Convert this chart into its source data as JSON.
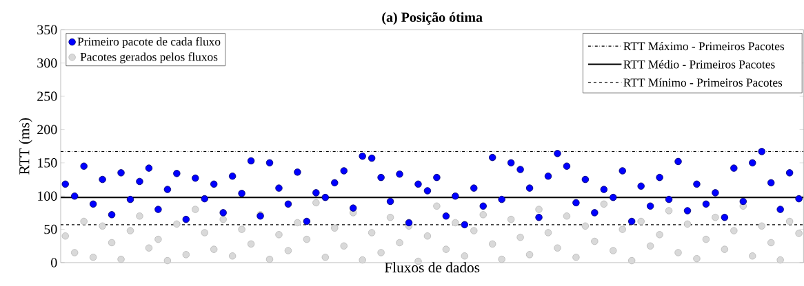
{
  "chart_data": {
    "type": "scatter",
    "title": "(a) Posição ótima",
    "xlabel": "Fluxos de dados",
    "ylabel": "RTT (ms)",
    "categories": [
      null,
      null,
      null,
      null,
      null,
      null,
      null,
      null,
      null,
      null,
      null,
      null,
      null,
      null,
      null,
      null,
      null,
      null,
      null,
      null,
      null,
      null,
      null,
      null,
      null,
      null,
      null,
      null,
      null,
      null,
      null,
      null,
      null,
      null,
      null,
      null,
      null,
      null,
      null,
      null,
      null,
      null,
      null,
      null,
      null,
      null,
      null,
      null,
      null,
      null,
      null,
      null,
      null,
      null,
      null,
      null,
      null,
      null,
      null,
      null,
      null,
      null,
      null,
      null,
      null,
      null,
      null,
      null,
      null,
      null,
      null,
      null,
      null,
      null,
      null,
      null,
      null,
      null,
      null,
      null
    ],
    "series": [
      {
        "name": "Primeiro pacote de cada fluxo",
        "color": "#0000ff",
        "values": [
          118,
          100,
          145,
          88,
          125,
          72,
          135,
          95,
          122,
          142,
          80,
          110,
          134,
          65,
          127,
          96,
          118,
          75,
          130,
          104,
          153,
          70,
          150,
          112,
          88,
          136,
          62,
          105,
          98,
          120,
          138,
          82,
          160,
          157,
          128,
          92,
          133,
          60,
          118,
          108,
          128,
          70,
          100,
          57,
          112,
          85,
          158,
          95,
          150,
          140,
          112,
          68,
          130,
          164,
          145,
          90,
          125,
          75,
          110,
          98,
          138,
          62,
          115,
          85,
          128,
          95,
          152,
          78,
          118,
          88,
          105,
          68,
          142,
          92,
          150,
          167,
          120,
          80,
          135,
          96
        ]
      },
      {
        "name": "Pacotes gerados pelos fluxos",
        "color": "#d9d9d9",
        "values": [
          40,
          15,
          62,
          8,
          55,
          30,
          5,
          48,
          70,
          22,
          35,
          3,
          58,
          12,
          80,
          45,
          20,
          65,
          10,
          50,
          28,
          72,
          5,
          42,
          18,
          60,
          35,
          90,
          8,
          52,
          25,
          75,
          4,
          45,
          15,
          68,
          30,
          55,
          2,
          40,
          85,
          20,
          60,
          10,
          48,
          72,
          28,
          5,
          65,
          38,
          12,
          80,
          45,
          22,
          70,
          8,
          55,
          32,
          88,
          18,
          50,
          3,
          62,
          25,
          42,
          78,
          15,
          58,
          6,
          35,
          68,
          20,
          48,
          85,
          10,
          55,
          30,
          4,
          62,
          44
        ]
      }
    ],
    "ylim": [
      0,
      350
    ],
    "yticks": [
      0,
      50,
      100,
      150,
      200,
      250,
      300,
      350
    ],
    "ref_lines": [
      {
        "axis": "y",
        "value": 167,
        "label": "RTT Máximo - Primeiros Pacotes",
        "color": "#000000",
        "line_style": "dashdot"
      },
      {
        "axis": "y",
        "value": 98,
        "label": "RTT Médio - Primeiros Pacotes",
        "color": "#000000",
        "line_style": "solid"
      },
      {
        "axis": "y",
        "value": 57,
        "label": "RTT Mínimo - Primeiros Pacotes",
        "color": "#000000",
        "line_style": "dashed"
      }
    ],
    "legend": "top left",
    "marker": "circle",
    "tick_labels": "y"
  }
}
